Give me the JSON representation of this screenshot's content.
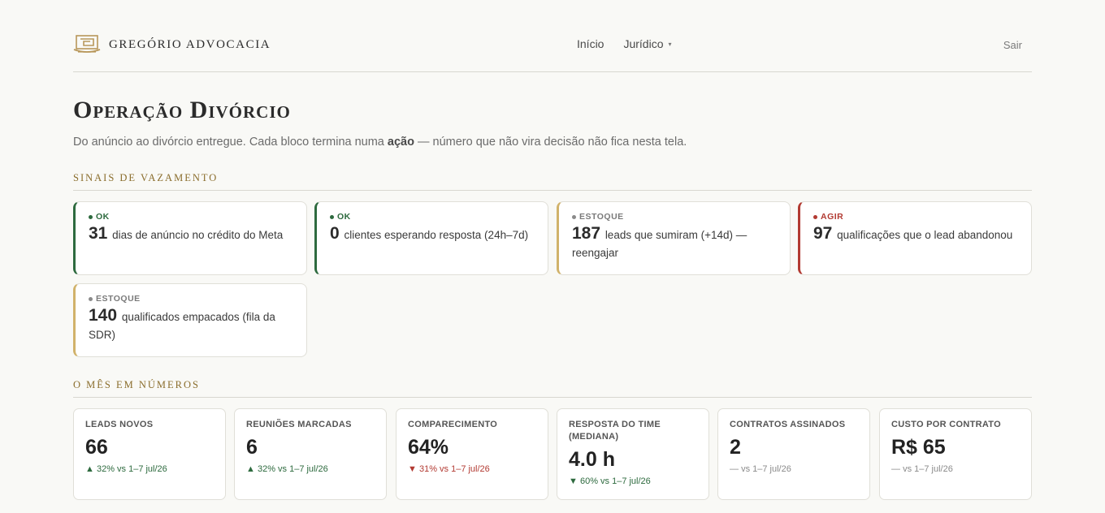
{
  "brand": {
    "name": "GREGÓRIO ADVOCACIA",
    "logo_icon": "scales-building-logo"
  },
  "nav": {
    "items": [
      {
        "label": "Início"
      },
      {
        "label": "Jurídico",
        "caret": "▾"
      }
    ],
    "logout": "Sair"
  },
  "page": {
    "title": "Operação Divórcio",
    "subtitle_pre": "Do anúncio ao divórcio entregue. Cada bloco termina numa ",
    "subtitle_bold": "ação",
    "subtitle_post": " — número que não vira decisão não fica nesta tela."
  },
  "signals_section": {
    "label": "Sinais de Vazamento",
    "cards": [
      {
        "status": "ok",
        "tag": "OK",
        "number": "31",
        "text": "dias de anúncio no crédito do Meta"
      },
      {
        "status": "ok",
        "tag": "OK",
        "number": "0",
        "text": "clientes esperando resposta (24h–7d)"
      },
      {
        "status": "stock",
        "tag": "ESTOQUE",
        "number": "187",
        "text": "leads que sumiram (+14d) — reengajar"
      },
      {
        "status": "act",
        "tag": "AGIR",
        "number": "97",
        "text": "qualificações que o lead abandonou"
      },
      {
        "status": "stock",
        "tag": "ESTOQUE",
        "number": "140",
        "text": "qualificados empacados (fila da SDR)"
      }
    ]
  },
  "metrics_section": {
    "label": "O Mês em Números",
    "cards": [
      {
        "label": "LEADS NOVOS",
        "value": "66",
        "trend": "up",
        "arrow": "▲",
        "delta": "32% vs 1–7 jul/26"
      },
      {
        "label": "REUNIÕES MARCADAS",
        "value": "6",
        "trend": "up",
        "arrow": "▲",
        "delta": "32% vs 1–7 jul/26"
      },
      {
        "label": "COMPARECIMENTO",
        "value": "64%",
        "trend": "down",
        "arrow": "▼",
        "delta": "31% vs 1–7 jul/26"
      },
      {
        "label": "RESPOSTA DO TIME (MEDIANA)",
        "value": "4.0 h",
        "trend": "up",
        "arrow": "▼",
        "delta": "60% vs 1–7 jul/26"
      },
      {
        "label": "CONTRATOS ASSINADOS",
        "value": "2",
        "trend": "neutral",
        "arrow": "—",
        "delta": "vs 1–7 jul/26"
      },
      {
        "label": "CUSTO POR CONTRATO",
        "value": "R$ 65",
        "trend": "neutral",
        "arrow": "—",
        "delta": "vs 1–7 jul/26"
      }
    ]
  },
  "colors": {
    "ok": "#2d6a3e",
    "stock": "#d1b26a",
    "act": "#b23a32",
    "accent": "#8a6d2c",
    "background": "#f9f9f6"
  }
}
